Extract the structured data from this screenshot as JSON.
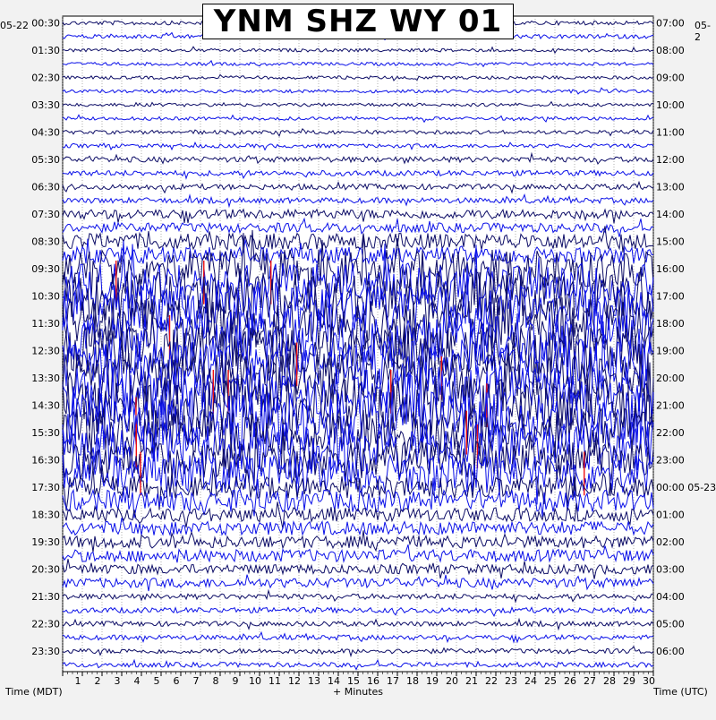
{
  "station_title": "YNM SHZ WY 01",
  "footer": {
    "left_label": "Time (MDT)",
    "center_label": "+ Minutes",
    "right_label": "Time (UTC)"
  },
  "dates": {
    "left_start": "05-22",
    "right_start": "05-2",
    "right_rollover": "05-23"
  },
  "colors": {
    "trace_a": "#0c0c66",
    "trace_b": "#0a10e8",
    "clipped": "#ee1010",
    "grid": "#7a7a7a",
    "background": "#ffffff"
  },
  "chart_data": {
    "type": "line",
    "title": "YNM SHZ WY 01",
    "xlabel": "+ Minutes",
    "ylabel_left": "Time (MDT)",
    "ylabel_right": "Time (UTC)",
    "xlim": [
      0,
      30
    ],
    "x_ticks": [
      1,
      2,
      3,
      4,
      5,
      6,
      7,
      8,
      9,
      10,
      11,
      12,
      13,
      14,
      15,
      16,
      17,
      18,
      19,
      20,
      21,
      22,
      23,
      24,
      25,
      26,
      27,
      28,
      29,
      30
    ],
    "left_hour_labels": [
      "00:30",
      "01:30",
      "02:30",
      "03:30",
      "04:30",
      "05:30",
      "06:30",
      "07:30",
      "08:30",
      "09:30",
      "10:30",
      "11:30",
      "12:30",
      "13:30",
      "14:30",
      "15:30",
      "16:30",
      "17:30",
      "18:30",
      "19:30",
      "20:30",
      "21:30",
      "22:30",
      "23:30"
    ],
    "right_hour_labels": [
      "07:00",
      "08:00",
      "09:00",
      "10:00",
      "11:00",
      "12:00",
      "13:00",
      "14:00",
      "15:00",
      "16:00",
      "17:00",
      "18:00",
      "19:00",
      "20:00",
      "21:00",
      "22:00",
      "23:00",
      "00:00 05-23",
      "01:00",
      "02:00",
      "03:00",
      "04:00",
      "05:00",
      "06:00"
    ],
    "trace_count": 48,
    "trace_colors_alternate": [
      "#0c0c66",
      "#0a10e8"
    ],
    "relative_amplitude_by_hour": [
      0.15,
      0.12,
      0.12,
      0.12,
      0.14,
      0.2,
      0.2,
      0.35,
      0.6,
      1.4,
      1.8,
      1.9,
      1.8,
      1.9,
      2.0,
      1.8,
      1.4,
      0.8,
      0.5,
      0.45,
      0.35,
      0.2,
      0.18,
      0.18
    ],
    "grid": true
  }
}
